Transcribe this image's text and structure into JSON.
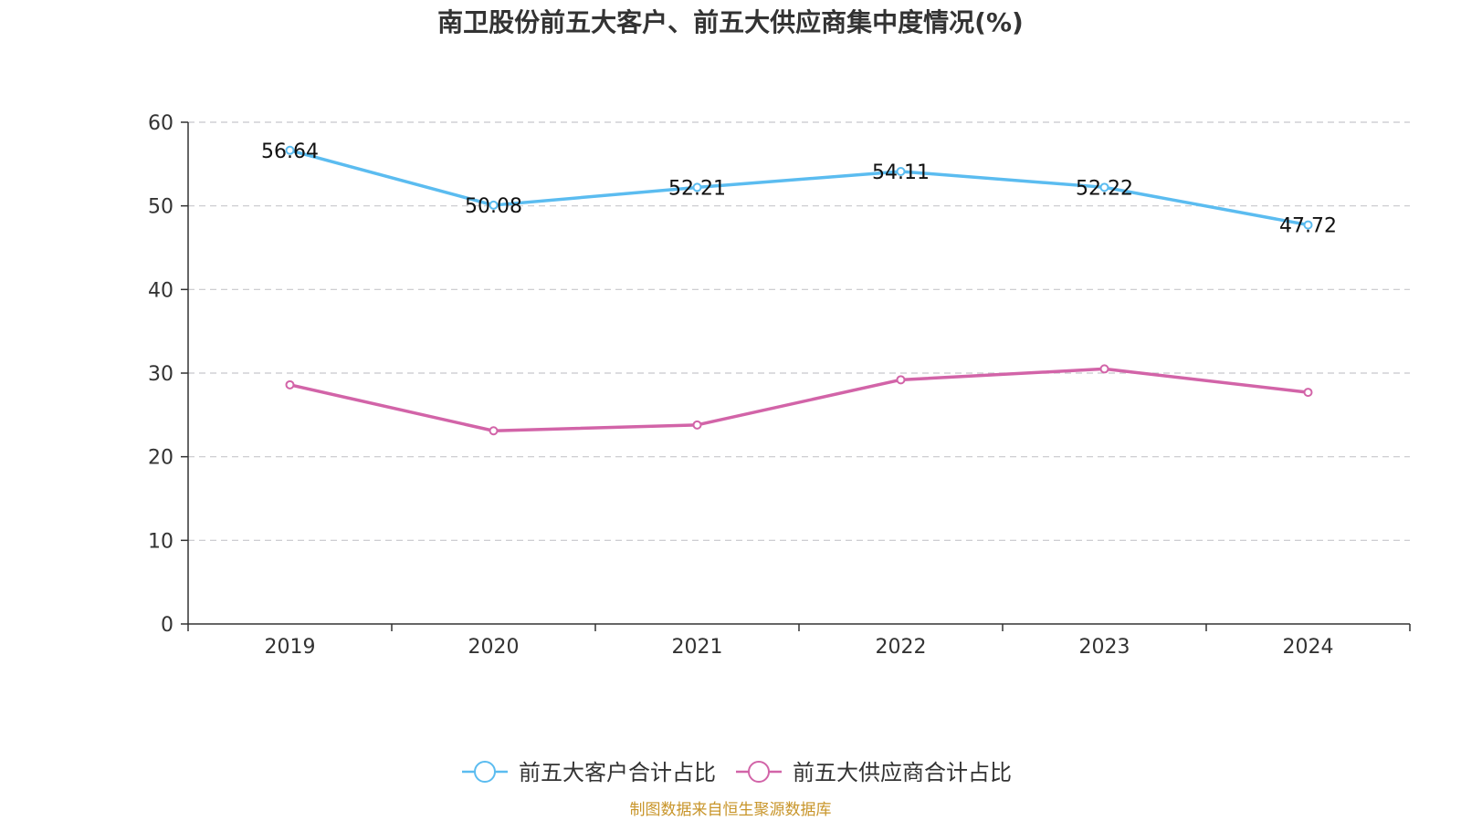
{
  "chart_data": {
    "type": "line",
    "title": "南卫股份前五大客户、前五大供应商集中度情况(%)",
    "categories": [
      "2019",
      "2020",
      "2021",
      "2022",
      "2023",
      "2024"
    ],
    "ylim": [
      0,
      60
    ],
    "yticks": [
      "0",
      "10",
      "20",
      "30",
      "40",
      "50",
      "60"
    ],
    "grid": true,
    "legend_position": "bottom-center",
    "series": [
      {
        "name": "前五大客户合计占比",
        "color": "#5bbcf0",
        "values": [
          56.64,
          50.08,
          52.21,
          54.11,
          52.22,
          47.72
        ],
        "labels": [
          "56.64",
          "50.08",
          "52.21",
          "54.11",
          "52.22",
          "47.72"
        ],
        "show_labels": true
      },
      {
        "name": "前五大供应商合计占比",
        "color": "#d264a8",
        "values": [
          28.6,
          23.1,
          23.8,
          29.2,
          30.5,
          27.7
        ],
        "show_labels": false
      }
    ],
    "source": "制图数据来自恒生聚源数据库"
  }
}
